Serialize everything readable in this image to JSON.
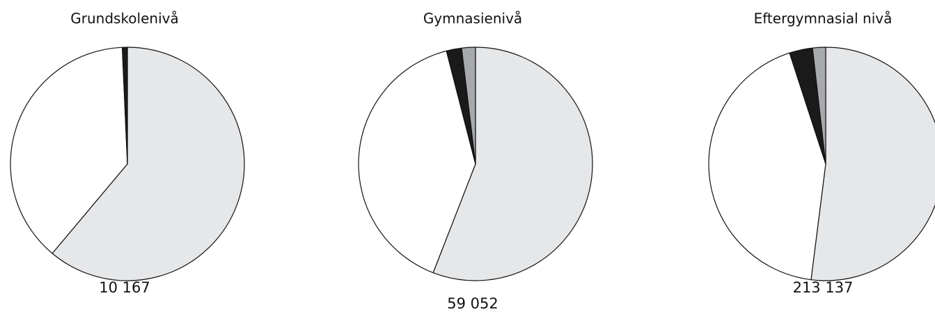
{
  "chart_data": [
    {
      "type": "pie",
      "title": "Grundskolenivå",
      "values": [
        61.1,
        38.2,
        0.7
      ],
      "colors": [
        "#e6e7e9",
        "#ffffff",
        "#1a1a1a"
      ],
      "total": {
        "value": 10167,
        "label": "10 167"
      }
    },
    {
      "type": "pie",
      "title": "Gymnasienivå",
      "values": [
        55.9,
        40.1,
        2.1,
        1.9
      ],
      "colors": [
        "#e6e7e9",
        "#ffffff",
        "#1a1a1a",
        "#a7a9ac"
      ],
      "total": {
        "value": 59052,
        "label": "59 052"
      }
    },
    {
      "type": "pie",
      "title": "Eftergymnasial nivå",
      "values": [
        52.0,
        43.0,
        3.2,
        1.8
      ],
      "colors": [
        "#e6e7e9",
        "#ffffff",
        "#1a1a1a",
        "#a7a9ac"
      ],
      "total": {
        "value": 213137,
        "label": "213 137"
      }
    }
  ]
}
